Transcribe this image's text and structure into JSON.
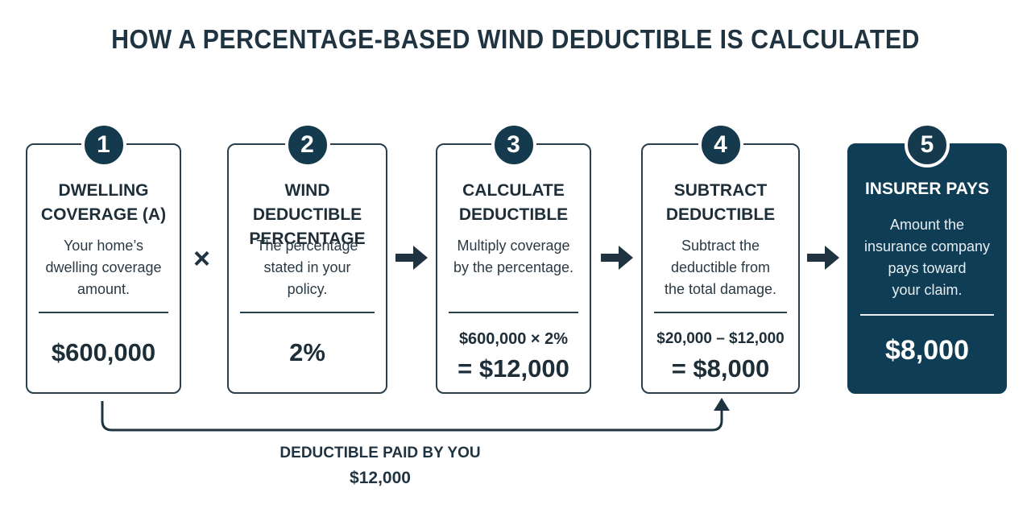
{
  "title": "HOW A PERCENTAGE-BASED WIND DEDUCTIBLE IS CALCULATED",
  "steps": [
    {
      "number": "1",
      "title_line1": "DWELLING",
      "title_line2": "COVERAGE (A)",
      "desc_line1": "Your home’s",
      "desc_line2": "dwelling coverage",
      "desc_line3": "amount.",
      "value": "$600,000"
    },
    {
      "number": "2",
      "title_line1": "WIND DEDUCTIBLE",
      "title_line2": "PERCENTAGE",
      "desc_line1": "The percentage",
      "desc_line2": "stated in your",
      "desc_line3": "policy.",
      "value": "2%"
    },
    {
      "number": "3",
      "title_line1": "CALCULATE",
      "title_line2": "DEDUCTIBLE",
      "desc_line1": "Multiply coverage",
      "desc_line2": "by the percentage.",
      "calc": "$600,000 × 2%",
      "value": "= $12,000"
    },
    {
      "number": "4",
      "title_line1": "SUBTRACT",
      "title_line2": "DEDUCTIBLE",
      "desc_line1": "Subtract the",
      "desc_line2": "deductible from",
      "desc_line3": "the total damage.",
      "calc": "$20,000 – $12,000",
      "value": "= $8,000"
    },
    {
      "number": "5",
      "title_line1": "INSURER PAYS",
      "desc_line1": "Amount the",
      "desc_line2": "insurance company",
      "desc_line3": "pays toward",
      "desc_line4": "your claim.",
      "value": "$8,000"
    }
  ],
  "operator_multiply": "×",
  "bottom": {
    "label": "DEDUCTIBLE PAID BY YOU",
    "value": "$12,000"
  },
  "colors": {
    "dark": "#0e3d55",
    "text": "#1f3340",
    "border": "#2a3f4c"
  },
  "icons": {
    "arrow": "arrow-right-icon",
    "bracket": "connector-arrow-up-icon"
  }
}
